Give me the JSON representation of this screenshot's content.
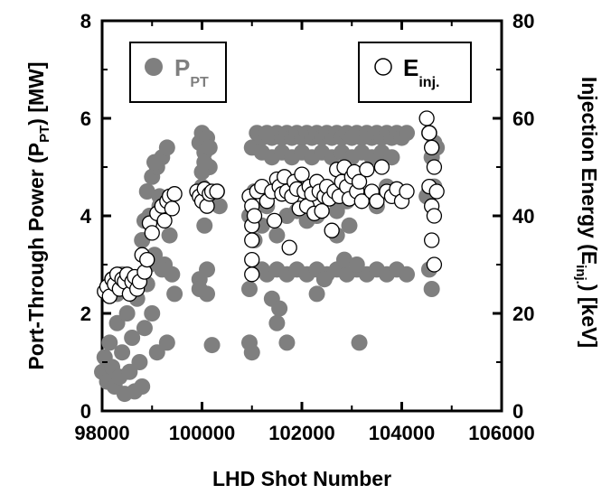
{
  "chart_data": {
    "type": "scatter",
    "xlabel": "LHD Shot Number",
    "ylabel_left": {
      "main": "Port-Through Power (P",
      "sub": "PT",
      "end": ") [MW]"
    },
    "ylabel_right": {
      "main": "Injection Energy (E",
      "sub": "inj.",
      "end": ") [keV]"
    },
    "xlim": [
      98000,
      106000
    ],
    "ylim_left": [
      0,
      8
    ],
    "ylim_right": [
      0,
      80
    ],
    "x_ticks": [
      "98000",
      "100000",
      "102000",
      "104000",
      "106000"
    ],
    "y_ticks_left": [
      "0",
      "2",
      "4",
      "6",
      "8"
    ],
    "y_ticks_right": [
      "0",
      "20",
      "40",
      "60",
      "80"
    ],
    "grid": false,
    "legend_left": {
      "symbol": "filled-circle",
      "main": "P",
      "sub": "PT",
      "color": "#7f7f7f"
    },
    "legend_right": {
      "symbol": "open-circle",
      "main": "E",
      "sub": "inj.",
      "color": "#000000"
    },
    "series": [
      {
        "name": "P_PT",
        "axis": "left",
        "color": "#7f7f7f",
        "points": [
          [
            98000,
            0.8
          ],
          [
            98050,
            1.1
          ],
          [
            98100,
            0.6
          ],
          [
            98150,
            1.4
          ],
          [
            98200,
            0.9
          ],
          [
            98250,
            0.5
          ],
          [
            98300,
            1.8
          ],
          [
            98350,
            0.7
          ],
          [
            98400,
            1.2
          ],
          [
            98450,
            0.35
          ],
          [
            98500,
            2.0
          ],
          [
            98550,
            0.8
          ],
          [
            98600,
            1.5
          ],
          [
            98650,
            0.4
          ],
          [
            98700,
            2.3
          ],
          [
            98750,
            1.0
          ],
          [
            98800,
            0.5
          ],
          [
            98850,
            1.7
          ],
          [
            98900,
            2.6
          ],
          [
            98950,
            3.0
          ],
          [
            98100,
            2.5
          ],
          [
            98200,
            2.7
          ],
          [
            98300,
            2.4
          ],
          [
            98400,
            2.8
          ],
          [
            98500,
            2.6
          ],
          [
            98600,
            2.5
          ],
          [
            98700,
            2.7
          ],
          [
            98800,
            3.5
          ],
          [
            98850,
            3.9
          ],
          [
            98900,
            4.5
          ],
          [
            98950,
            4.0
          ],
          [
            99000,
            4.8
          ],
          [
            99050,
            3.2
          ],
          [
            99100,
            5.0
          ],
          [
            99150,
            4.2
          ],
          [
            99200,
            5.2
          ],
          [
            99250,
            3.0
          ],
          [
            99300,
            5.4
          ],
          [
            99350,
            3.6
          ],
          [
            99000,
            2.0
          ],
          [
            99100,
            1.2
          ],
          [
            99200,
            2.9
          ],
          [
            99300,
            1.4
          ],
          [
            99400,
            2.8
          ],
          [
            99450,
            2.4
          ],
          [
            99050,
            5.1
          ],
          [
            99150,
            4.4
          ],
          [
            99950,
            5.5
          ],
          [
            100000,
            5.7
          ],
          [
            100050,
            5.3
          ],
          [
            100100,
            5.6
          ],
          [
            100150,
            5.0
          ],
          [
            100000,
            4.6
          ],
          [
            100100,
            4.4
          ],
          [
            100050,
            3.8
          ],
          [
            100100,
            2.9
          ],
          [
            99950,
            2.7
          ],
          [
            100100,
            2.4
          ],
          [
            99950,
            2.5
          ],
          [
            100000,
            4.9
          ],
          [
            100150,
            4.5
          ],
          [
            100300,
            4.5
          ],
          [
            100350,
            4.2
          ],
          [
            100200,
            1.35
          ],
          [
            100050,
            5.1
          ],
          [
            100150,
            5.4
          ],
          [
            100950,
            4.0
          ],
          [
            101000,
            5.4
          ],
          [
            101050,
            3.5
          ],
          [
            100950,
            1.4
          ],
          [
            101000,
            1.2
          ],
          [
            100950,
            2.5
          ],
          [
            101050,
            4.5
          ],
          [
            101100,
            5.7
          ],
          [
            101100,
            2.9
          ],
          [
            101200,
            5.6
          ],
          [
            101300,
            5.7
          ],
          [
            101400,
            5.6
          ],
          [
            101500,
            5.7
          ],
          [
            101600,
            5.6
          ],
          [
            101700,
            5.7
          ],
          [
            101800,
            5.6
          ],
          [
            101900,
            5.7
          ],
          [
            102000,
            5.6
          ],
          [
            102100,
            5.7
          ],
          [
            102200,
            5.6
          ],
          [
            102300,
            5.7
          ],
          [
            102400,
            5.6
          ],
          [
            102500,
            5.7
          ],
          [
            102600,
            5.6
          ],
          [
            102700,
            5.7
          ],
          [
            102800,
            5.6
          ],
          [
            102900,
            5.7
          ],
          [
            103000,
            5.6
          ],
          [
            103100,
            5.7
          ],
          [
            103200,
            5.6
          ],
          [
            103300,
            5.7
          ],
          [
            103400,
            5.6
          ],
          [
            103500,
            5.7
          ],
          [
            103600,
            5.6
          ],
          [
            103700,
            5.7
          ],
          [
            103800,
            5.6
          ],
          [
            103900,
            5.7
          ],
          [
            104000,
            5.6
          ],
          [
            104100,
            5.7
          ],
          [
            101200,
            5.3
          ],
          [
            101400,
            5.2
          ],
          [
            101600,
            5.3
          ],
          [
            101800,
            5.2
          ],
          [
            102000,
            5.3
          ],
          [
            102200,
            5.2
          ],
          [
            102400,
            5.3
          ],
          [
            102600,
            5.2
          ],
          [
            102800,
            5.3
          ],
          [
            103000,
            5.2
          ],
          [
            103200,
            5.3
          ],
          [
            103400,
            5.2
          ],
          [
            103600,
            5.3
          ],
          [
            103800,
            5.2
          ],
          [
            101200,
            2.9
          ],
          [
            101300,
            2.8
          ],
          [
            101500,
            2.9
          ],
          [
            101700,
            2.8
          ],
          [
            101900,
            2.9
          ],
          [
            102100,
            2.8
          ],
          [
            102300,
            2.9
          ],
          [
            102500,
            2.8
          ],
          [
            102700,
            2.9
          ],
          [
            102900,
            2.8
          ],
          [
            103100,
            2.9
          ],
          [
            103300,
            2.8
          ],
          [
            103500,
            2.9
          ],
          [
            103700,
            2.8
          ],
          [
            103900,
            2.9
          ],
          [
            104100,
            2.8
          ],
          [
            101200,
            3.8
          ],
          [
            101300,
            4.2
          ],
          [
            101500,
            3.6
          ],
          [
            101700,
            4.0
          ],
          [
            101900,
            4.1
          ],
          [
            102100,
            3.9
          ],
          [
            102300,
            4.0
          ],
          [
            102500,
            4.4
          ],
          [
            102700,
            4.1
          ],
          [
            102900,
            4.3
          ],
          [
            103100,
            4.5
          ],
          [
            103300,
            4.4
          ],
          [
            103500,
            4.2
          ],
          [
            103700,
            4.6
          ],
          [
            101400,
            2.3
          ],
          [
            101500,
            1.8
          ],
          [
            101550,
            2.1
          ],
          [
            101700,
            1.4
          ],
          [
            102300,
            2.4
          ],
          [
            102450,
            2.7
          ],
          [
            103150,
            1.4
          ],
          [
            102900,
            4.8
          ],
          [
            102950,
            3.8
          ],
          [
            102700,
            3.6
          ],
          [
            102850,
            3.1
          ],
          [
            103100,
            3.0
          ],
          [
            104550,
            5.7
          ],
          [
            104600,
            5.2
          ],
          [
            104650,
            5.5
          ],
          [
            104700,
            5.4
          ],
          [
            104550,
            4.5
          ],
          [
            104600,
            2.5
          ],
          [
            104550,
            2.9
          ],
          [
            104650,
            4.6
          ],
          [
            104500,
            4.4
          ]
        ]
      },
      {
        "name": "E_inj.",
        "axis": "right",
        "color": "#000000",
        "points": [
          [
            98050,
            24.5
          ],
          [
            98100,
            25.5
          ],
          [
            98150,
            23.5
          ],
          [
            98200,
            27
          ],
          [
            98250,
            26
          ],
          [
            98300,
            28
          ],
          [
            98350,
            25
          ],
          [
            98400,
            27
          ],
          [
            98450,
            26.5
          ],
          [
            98500,
            28
          ],
          [
            98550,
            24
          ],
          [
            98600,
            26.5
          ],
          [
            98650,
            27.5
          ],
          [
            98700,
            25
          ],
          [
            98750,
            26.5
          ],
          [
            98800,
            32
          ],
          [
            98850,
            28.5
          ],
          [
            98900,
            31
          ],
          [
            98950,
            38.5
          ],
          [
            99000,
            36.5
          ],
          [
            99100,
            40.5
          ],
          [
            99200,
            42
          ],
          [
            99250,
            39
          ],
          [
            99300,
            43
          ],
          [
            99350,
            44
          ],
          [
            99400,
            41.5
          ],
          [
            99450,
            44.5
          ],
          [
            99900,
            45
          ],
          [
            99950,
            44
          ],
          [
            100000,
            43
          ],
          [
            100050,
            45.5
          ],
          [
            100100,
            42
          ],
          [
            100150,
            44.5
          ],
          [
            100200,
            45
          ],
          [
            100300,
            45
          ],
          [
            100950,
            44
          ],
          [
            101000,
            42
          ],
          [
            101000,
            38
          ],
          [
            101000,
            35
          ],
          [
            101000,
            31
          ],
          [
            101000,
            28
          ],
          [
            101050,
            40
          ],
          [
            101100,
            45
          ],
          [
            101200,
            46
          ],
          [
            101300,
            43
          ],
          [
            101400,
            45
          ],
          [
            101450,
            39
          ],
          [
            101500,
            47.5
          ],
          [
            101550,
            46
          ],
          [
            101600,
            44.5
          ],
          [
            101650,
            48
          ],
          [
            101700,
            45
          ],
          [
            101750,
            33.5
          ],
          [
            101800,
            44
          ],
          [
            101850,
            47
          ],
          [
            101900,
            45.5
          ],
          [
            101950,
            41.5
          ],
          [
            102000,
            48.5
          ],
          [
            102050,
            45
          ],
          [
            102100,
            42
          ],
          [
            102150,
            46
          ],
          [
            102200,
            44.5
          ],
          [
            102250,
            40.5
          ],
          [
            102300,
            47
          ],
          [
            102350,
            45
          ],
          [
            102400,
            41
          ],
          [
            102450,
            44
          ],
          [
            102500,
            46
          ],
          [
            102550,
            43.5
          ],
          [
            102600,
            37
          ],
          [
            102650,
            45
          ],
          [
            102700,
            49.5
          ],
          [
            102750,
            44
          ],
          [
            102800,
            47
          ],
          [
            102850,
            50
          ],
          [
            102900,
            46
          ],
          [
            102950,
            43.5
          ],
          [
            103000,
            48
          ],
          [
            103050,
            49
          ],
          [
            103100,
            45
          ],
          [
            103150,
            47
          ],
          [
            103200,
            43
          ],
          [
            103300,
            49.5
          ],
          [
            103400,
            45
          ],
          [
            103500,
            43
          ],
          [
            103600,
            50
          ],
          [
            103700,
            45
          ],
          [
            103800,
            44
          ],
          [
            103900,
            45.5
          ],
          [
            104000,
            43
          ],
          [
            104100,
            45
          ],
          [
            104500,
            60
          ],
          [
            104550,
            57
          ],
          [
            104600,
            54
          ],
          [
            104650,
            50
          ],
          [
            104550,
            46
          ],
          [
            104600,
            42
          ],
          [
            104650,
            40
          ],
          [
            104600,
            35
          ],
          [
            104650,
            30
          ],
          [
            104700,
            45
          ]
        ]
      }
    ]
  }
}
